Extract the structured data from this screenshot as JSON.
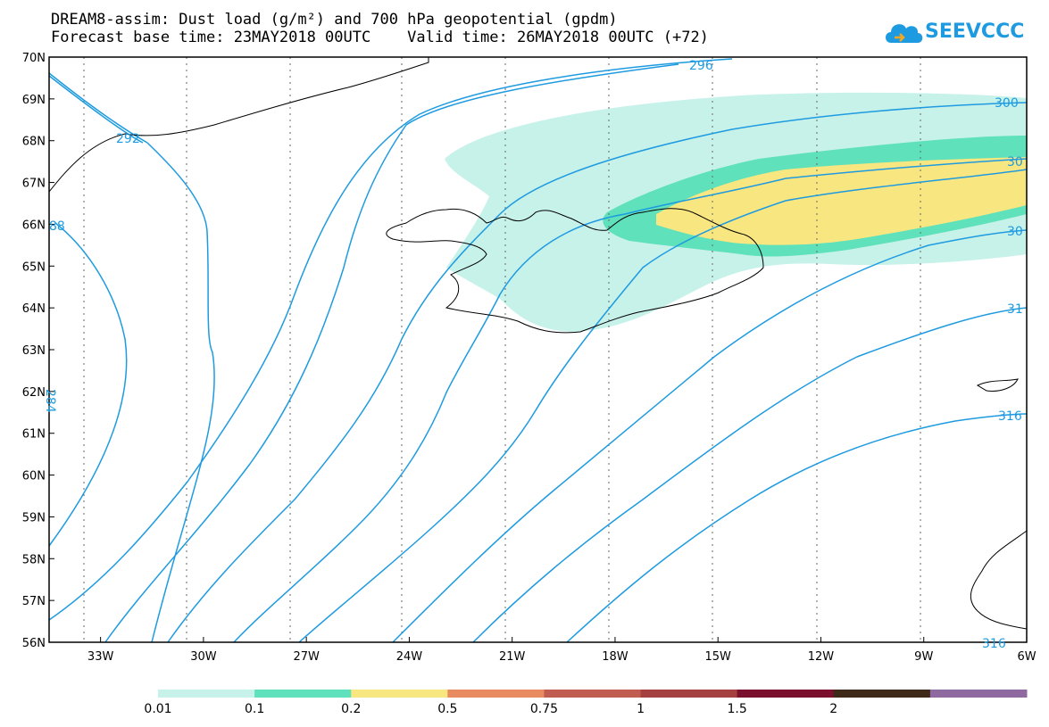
{
  "header": {
    "title_line1": "DREAM8-assim: Dust load (g/m²) and 700 hPa geopotential (gpdm)",
    "title_line2": "Forecast base time: 23MAY2018 00UTC    Valid time: 26MAY2018 00UTC (+72)"
  },
  "logo": {
    "text": "SEEVCCC",
    "icon": "cloud-icon",
    "color": "#1e9be0"
  },
  "map": {
    "region": "Iceland and North Atlantic",
    "lon_range": [
      -34.5,
      -6
    ],
    "lat_range": [
      56,
      70
    ],
    "lat_labels": [
      "70N",
      "69N",
      "68N",
      "67N",
      "66N",
      "65N",
      "64N",
      "63N",
      "62N",
      "61N",
      "60N",
      "59N",
      "58N",
      "57N",
      "56N"
    ],
    "lon_labels": [
      "33W",
      "30W",
      "27W",
      "24W",
      "21W",
      "18W",
      "15W",
      "12W",
      "9W",
      "6W"
    ],
    "contour_labels": [
      {
        "text": "296"
      },
      {
        "text": "300"
      },
      {
        "text": "30"
      },
      {
        "text": "30"
      },
      {
        "text": "31"
      },
      {
        "text": "316"
      },
      {
        "text": "316"
      },
      {
        "text": "292"
      },
      {
        "text": "88"
      },
      {
        "text": "284"
      }
    ],
    "contour_color": "#1e9be0"
  },
  "legend": {
    "colors": [
      "#c7f2ea",
      "#5fe1bb",
      "#f8e680",
      "#e88b60",
      "#c05c50",
      "#a44040",
      "#7a0f2e",
      "#3f2a1a",
      "#8f6aa1"
    ],
    "labels": [
      "0.01",
      "0.1",
      "0.2",
      "0.5",
      "0.75",
      "1",
      "1.5",
      "2"
    ]
  }
}
